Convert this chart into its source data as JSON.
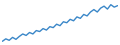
{
  "x": [
    0,
    1,
    2,
    3,
    4,
    5,
    6,
    7,
    8,
    9,
    10,
    11,
    12,
    13,
    14,
    15,
    16,
    17,
    18,
    19,
    20,
    21,
    22,
    23,
    24,
    25,
    26,
    27,
    28,
    29,
    30,
    31,
    32,
    33,
    34
  ],
  "y": [
    1.0,
    1.5,
    1.2,
    1.8,
    1.4,
    2.0,
    2.5,
    2.2,
    2.8,
    2.5,
    3.2,
    3.0,
    3.6,
    3.3,
    4.0,
    3.8,
    4.5,
    4.2,
    5.0,
    4.8,
    5.5,
    5.2,
    6.0,
    5.7,
    6.5,
    6.2,
    7.0,
    7.5,
    7.0,
    7.8,
    8.2,
    7.6,
    8.5,
    8.0,
    8.3
  ],
  "line_color": "#3a87c8",
  "background_color": "#ffffff",
  "linewidth": 1.0
}
